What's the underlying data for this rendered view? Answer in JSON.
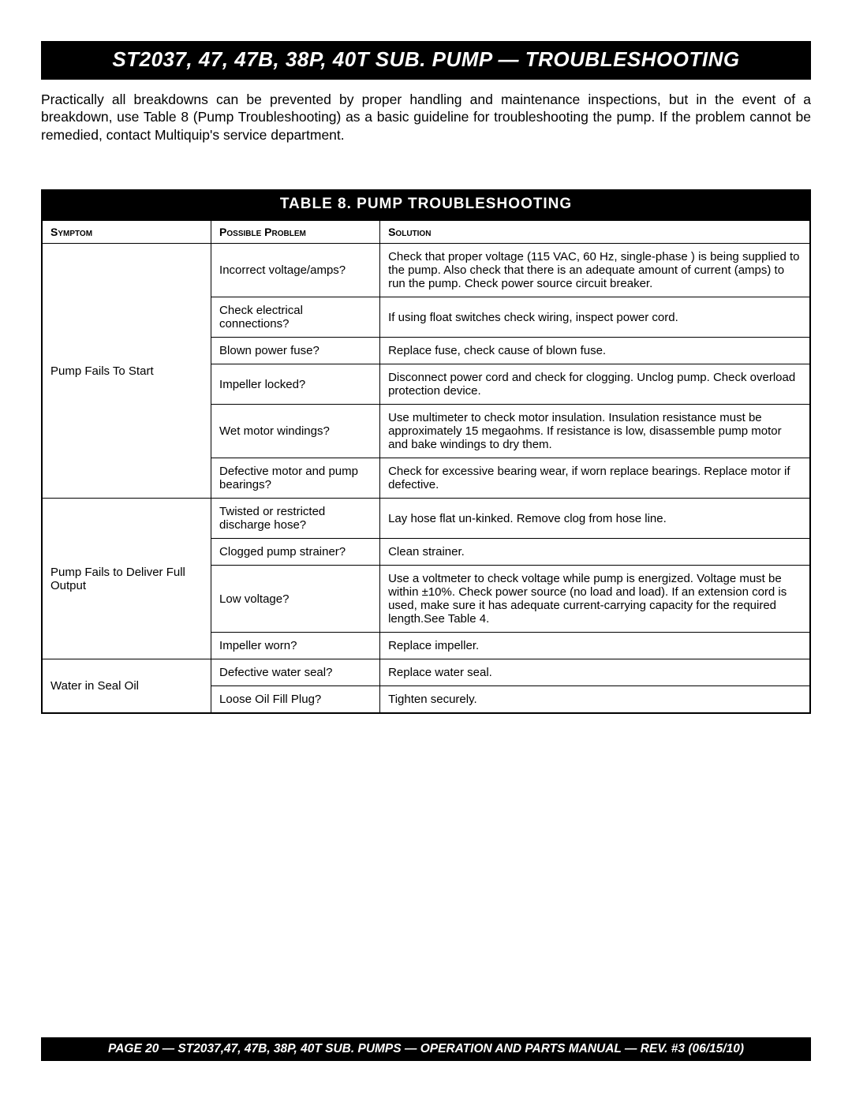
{
  "header": {
    "title": "ST2037, 47, 47B, 38P, 40T SUB. PUMP — TROUBLESHOOTING"
  },
  "intro": {
    "text": "Practically all breakdowns can be prevented by proper handling and maintenance inspections, but in the event of a breakdown, use Table 8 (Pump Troubleshooting) as a basic guideline for troubleshooting the pump.  If the problem cannot be remedied, contact Multiquip's service department."
  },
  "table": {
    "title": "TABLE 8.   PUMP TROUBLESHOOTING",
    "columns": [
      "Symptom",
      "Possible Problem",
      "Solution"
    ],
    "column_css": {
      "c1_width": "22%",
      "c2_width": "22%",
      "c3_width": "56%"
    },
    "typography": {
      "header_fontsize": 14,
      "cell_fontsize": 15,
      "title_fontsize": 19,
      "page_header_fontsize": 26,
      "footer_fontsize": 15.5
    },
    "colors": {
      "background": "#ffffff",
      "bar_background": "#000000",
      "bar_text": "#ffffff",
      "border": "#000000",
      "body_text": "#000000"
    },
    "groups": [
      {
        "symptom": "Pump Fails To Start",
        "rows": [
          {
            "problem": "Incorrect voltage/amps?",
            "solution": "Check that proper voltage (115 VAC, 60 Hz, single-phase ) is being supplied to the pump.  Also check that there is an adequate amount of current (amps) to run the pump. Check power source circuit breaker.",
            "justify": true
          },
          {
            "problem": "Check electrical connections?",
            "solution": "If using float switches check wiring, inspect power cord."
          },
          {
            "problem": "Blown power fuse?",
            "solution": "Replace fuse, check cause of blown fuse."
          },
          {
            "problem": "Impeller locked?",
            "solution": "Disconnect power cord and check for clogging. Unclog pump. Check overload protection device."
          },
          {
            "problem": "Wet motor windings?",
            "solution": "Use multimeter to check motor insulation. Insulation resistance must be approximately 15 megaohms. If resistance is low, disassemble pump motor and bake windings to dry them.",
            "justify": true
          },
          {
            "problem": "Defective motor and pump bearings?",
            "solution": "Check for excessive bearing wear, if worn replace bearings. Replace motor if defective."
          }
        ]
      },
      {
        "symptom": "Pump Fails to Deliver Full Output",
        "rows": [
          {
            "problem": "Twisted or restricted discharge hose?",
            "solution": "Lay hose flat un-kinked. Remove clog from hose line."
          },
          {
            "problem": "Clogged pump strainer?",
            "solution": "Clean strainer."
          },
          {
            "problem": "Low voltage?",
            "solution": "Use a voltmeter to check voltage while pump is energized. Voltage must be within ±10%. Check power source (no load and load). If an extension cord is used, make sure it has adequate current-carrying capacity for the required length.See Table 4.",
            "justify": true
          },
          {
            "problem": "Impeller worn?",
            "solution": "Replace impeller."
          }
        ]
      },
      {
        "symptom": "Water in Seal Oil",
        "rows": [
          {
            "problem": "Defective water seal?",
            "solution": "Replace water seal."
          },
          {
            "problem": "Loose Oil Fill Plug?",
            "solution": "Tighten securely."
          }
        ]
      }
    ]
  },
  "footer": {
    "text": "PAGE 20 — ST2037,47, 47B, 38P, 40T  SUB. PUMPS  — OPERATION AND PARTS MANUAL — REV. #3 (06/15/10)"
  }
}
